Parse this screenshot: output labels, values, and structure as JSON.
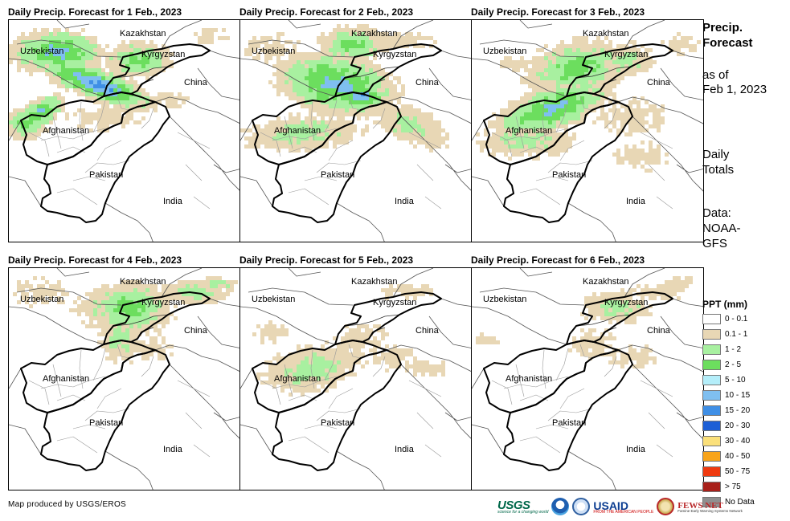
{
  "panels": [
    {
      "title": "Daily Precip. Forecast for 1 Feb., 2023",
      "coverage": "heavy"
    },
    {
      "title": "Daily Precip. Forecast for 2 Feb., 2023",
      "coverage": "heavy"
    },
    {
      "title": "Daily Precip. Forecast for 3 Feb., 2023",
      "coverage": "heavy"
    },
    {
      "title": "Daily Precip. Forecast for 4 Feb., 2023",
      "coverage": "moderate"
    },
    {
      "title": "Daily Precip. Forecast for 5 Feb., 2023",
      "coverage": "light"
    },
    {
      "title": "Daily Precip. Forecast for 6 Feb., 2023",
      "coverage": "light"
    }
  ],
  "map_labels": {
    "kazakhstan": "Kazakhstan",
    "uzbekistan": "Uzbekistan",
    "kyrgyzstan": "Kyrgyzstan",
    "china": "China",
    "afghanistan": "Afghanistan",
    "pakistan": "Pakistan",
    "india": "India"
  },
  "sidebar": {
    "heading_line1": "Precip.",
    "heading_line2": "Forecast",
    "asof_line1": "as of",
    "asof_line2": "Feb 1, 2023",
    "totals_line1": "Daily",
    "totals_line2": "Totals",
    "data_line1": "Data:",
    "data_line2": "NOAA-",
    "data_line3": "GFS"
  },
  "legend": {
    "title": "PPT (mm)",
    "items": [
      {
        "label": "0 - 0.1",
        "color": "#ffffff"
      },
      {
        "label": "0.1 - 1",
        "color": "#e8d7b5"
      },
      {
        "label": "1 - 2",
        "color": "#a8f0a0"
      },
      {
        "label": "2 - 5",
        "color": "#6cde5e"
      },
      {
        "label": "5 - 10",
        "color": "#b4eefa"
      },
      {
        "label": "10 - 15",
        "color": "#7fbff0"
      },
      {
        "label": "15 - 20",
        "color": "#3f8fe6"
      },
      {
        "label": "20 - 30",
        "color": "#1d5fd6"
      },
      {
        "label": "30 - 40",
        "color": "#fbe07a"
      },
      {
        "label": "40 - 50",
        "color": "#f8a41a"
      },
      {
        "label": "50 - 75",
        "color": "#ef3a10"
      },
      {
        "label": "> 75",
        "color": "#a8201a"
      },
      {
        "label": "No Data",
        "color": "#8f8f8f"
      }
    ]
  },
  "credit": "Map produced by USGS/EROS",
  "logos": {
    "usgs": "USGS",
    "usgs_tagline": "science for a changing world",
    "usaid": "USAID",
    "usaid_tagline": "FROM THE AMERICAN PEOPLE",
    "fews": "FEWS NET",
    "fews_tagline": "Famine Early Warning Systems Network"
  }
}
